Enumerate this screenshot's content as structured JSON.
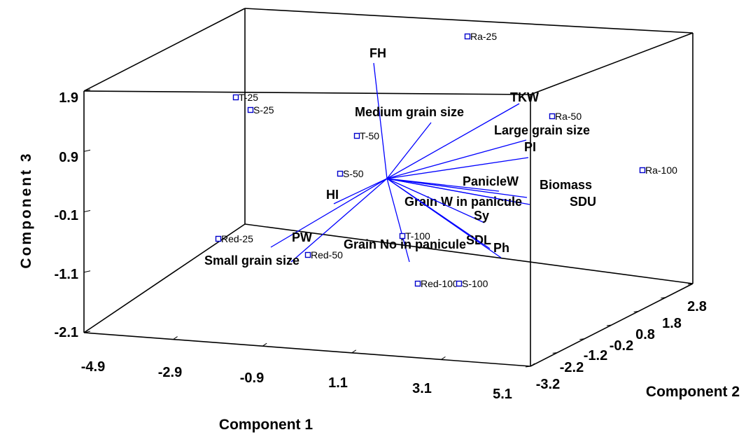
{
  "chart_data": {
    "type": "scatter",
    "title": "",
    "axes": {
      "x": {
        "label": "Component 1",
        "ticks": [
          "-4.9",
          "-2.9",
          "-0.9",
          "1.1",
          "3.1",
          "5.1"
        ],
        "range": [
          -4.9,
          5.1
        ]
      },
      "y": {
        "label": "Component 2",
        "ticks": [
          "-3.2",
          "-2.2",
          "-1.2",
          "-0.2",
          "0.8",
          "1.8",
          "2.8"
        ],
        "range": [
          -3.2,
          2.8
        ]
      },
      "z": {
        "label": "Component 3",
        "ticks": [
          "1.9",
          "0.9",
          "-0.1",
          "-1.1",
          "-2.1"
        ],
        "range": [
          -2.1,
          1.9
        ]
      }
    },
    "variables": [
      {
        "name": "FH"
      },
      {
        "name": "Medium grain size"
      },
      {
        "name": "TKW"
      },
      {
        "name": "Large grain size"
      },
      {
        "name": "PI"
      },
      {
        "name": "PanicleW"
      },
      {
        "name": "Biomass"
      },
      {
        "name": "SDU"
      },
      {
        "name": "Grain W in panicule"
      },
      {
        "name": "Sy"
      },
      {
        "name": "SDL"
      },
      {
        "name": "Ph"
      },
      {
        "name": "Grain No in panicule"
      },
      {
        "name": "HI"
      },
      {
        "name": "PW"
      },
      {
        "name": "Small grain size"
      }
    ],
    "observations": [
      {
        "name": "Ra-25"
      },
      {
        "name": "T-25"
      },
      {
        "name": "S-25"
      },
      {
        "name": "Ra-50"
      },
      {
        "name": "T-50"
      },
      {
        "name": "S-50"
      },
      {
        "name": "Ra-100"
      },
      {
        "name": "Red-25"
      },
      {
        "name": "T-100"
      },
      {
        "name": "Red-50"
      },
      {
        "name": "Red-100"
      },
      {
        "name": "S-100"
      }
    ]
  },
  "colors": {
    "vector": "#0000ff",
    "marker": "#0000cc",
    "axis": "#000000",
    "background": "#ffffff"
  }
}
